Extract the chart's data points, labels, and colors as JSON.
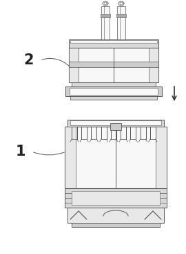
{
  "background_color": "#ffffff",
  "line_color": "#555555",
  "fill_light": "#e8e8e8",
  "fill_medium": "#cccccc",
  "fill_dark": "#aaaaaa",
  "fill_white": "#f8f8f8",
  "fill_mid2": "#d8d8d8",
  "label_1": "1",
  "label_2": "2",
  "arrow_color": "#333333",
  "fig_width": 2.7,
  "fig_height": 3.67,
  "dpi": 100
}
